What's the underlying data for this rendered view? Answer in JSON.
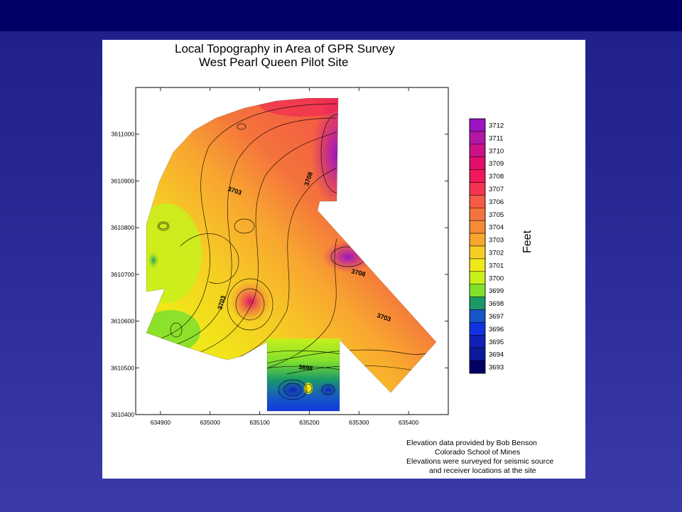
{
  "chart_data": {
    "type": "heatmap",
    "title": "Local Topography in Area of GPR Survey",
    "subtitle": "West Pearl Queen Pilot Site",
    "x_ticks": [
      634900,
      635000,
      635100,
      635200,
      635300,
      635400
    ],
    "y_ticks": [
      3610400,
      3610500,
      3610600,
      3610700,
      3610800,
      3610900,
      3611000
    ],
    "xlim": [
      634850,
      635480
    ],
    "ylim": [
      3610400,
      3611100
    ],
    "legend_label": "Feet",
    "legend_levels": [
      3712,
      3711,
      3710,
      3709,
      3708,
      3707,
      3706,
      3705,
      3704,
      3703,
      3702,
      3701,
      3700,
      3699,
      3698,
      3697,
      3696,
      3695,
      3694,
      3693
    ],
    "legend_colors": [
      "#9a14c4",
      "#b316a6",
      "#cc1188",
      "#e1106a",
      "#f0185a",
      "#f43450",
      "#f45a44",
      "#f4733c",
      "#f68a36",
      "#f8a630",
      "#f6cd24",
      "#f0e818",
      "#c8f01c",
      "#82e02c",
      "#1a9a68",
      "#1656c8",
      "#1234e0",
      "#1020b4",
      "#0a1a9a",
      "#000066"
    ],
    "contour_labels": [
      "3703",
      "3708",
      "3708",
      "3703",
      "3703",
      "3698"
    ],
    "credits": [
      "Elevation data provided by Bob Benson",
      "Colorado School of Mines",
      "Elevations were surveyed for seismic source",
      "and receiver locations at the site"
    ]
  }
}
